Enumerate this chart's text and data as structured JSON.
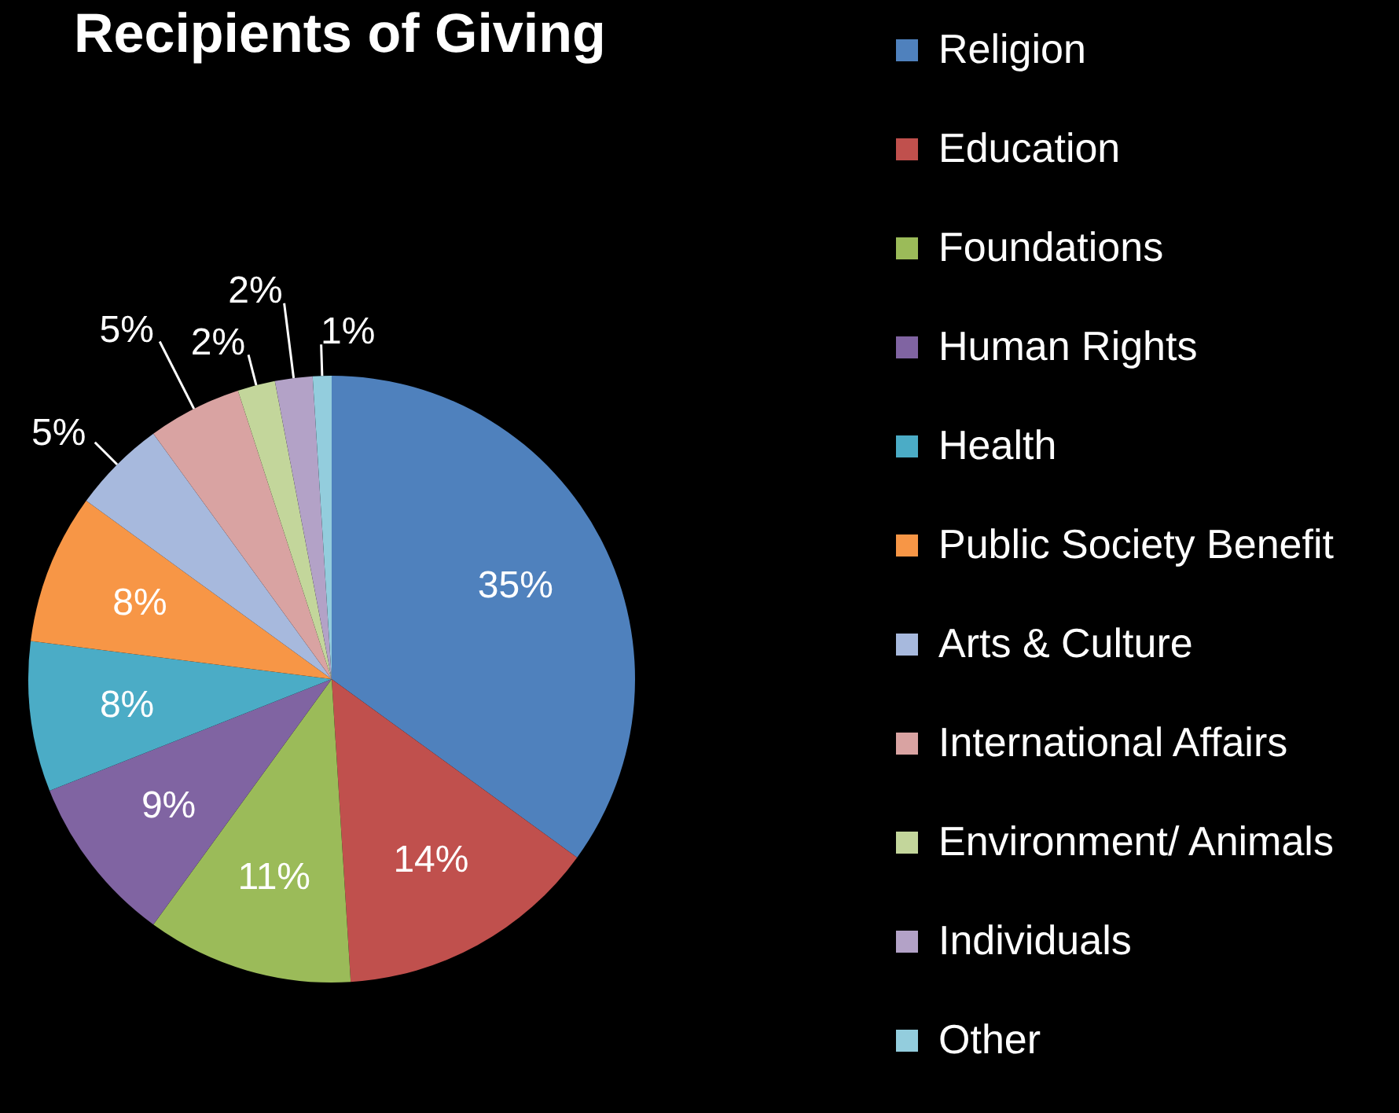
{
  "chart_data": {
    "type": "pie",
    "title": "Recipients of Giving",
    "categories": [
      "Religion",
      "Education",
      "Foundations",
      "Human Rights",
      "Health",
      "Public Society Benefit",
      "Arts & Culture",
      "International Affairs",
      "Environment/ Animals",
      "Individuals",
      "Other"
    ],
    "values": [
      35,
      14,
      11,
      9,
      8,
      8,
      5,
      5,
      2,
      2,
      1
    ],
    "colors": [
      "#4f81bd",
      "#c0504d",
      "#9bbb59",
      "#8064a2",
      "#4bacc6",
      "#f79646",
      "#a7b9dd",
      "#d9a3a2",
      "#c3d69b",
      "#b3a2c7",
      "#93cddd"
    ],
    "value_labels": [
      "35%",
      "14%",
      "11%",
      "9%",
      "8%",
      "8%",
      "5%",
      "5%",
      "2%",
      "2%",
      "1%"
    ],
    "legend": "right"
  }
}
